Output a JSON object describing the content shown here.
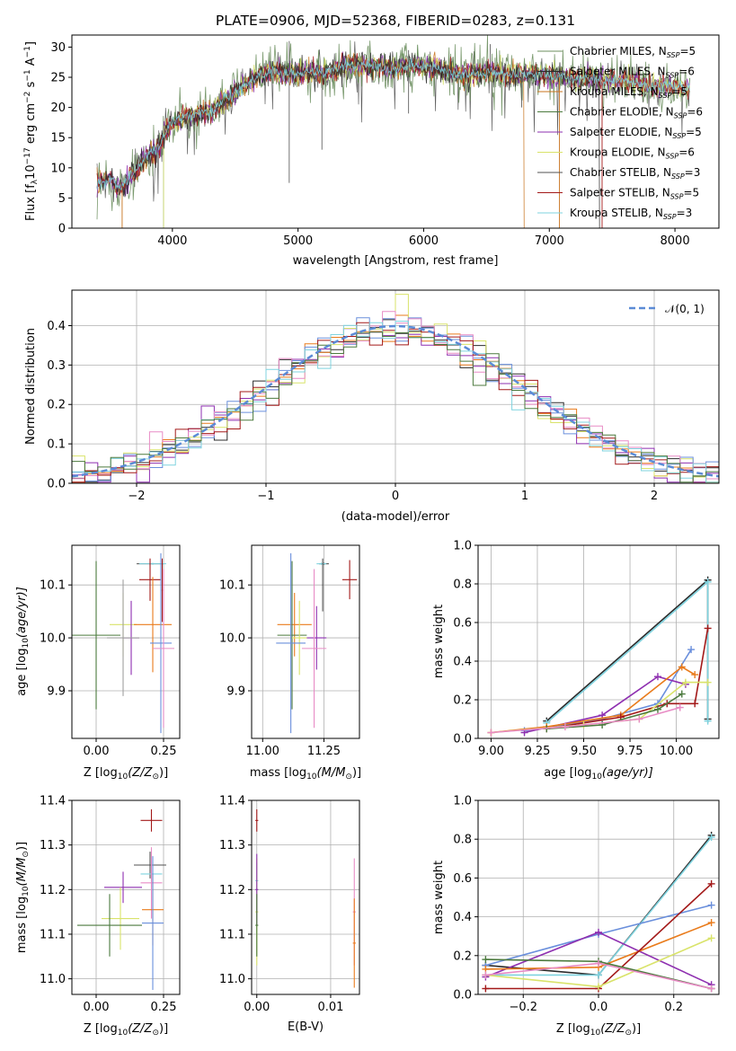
{
  "colors": {
    "series": [
      "#6b8e5e",
      "#2b2b2b",
      "#c8731e",
      "#4c7a3e",
      "#8e2fb0",
      "#d9e36a",
      "#505050",
      "#a31919",
      "#7fd3df"
    ],
    "extra": [
      "#6a8fdc",
      "#e97b1b",
      "#e88bc5",
      "#a0a0a0"
    ],
    "normal": "#5b8bd6"
  },
  "chart_data": [
    {
      "id": "spectrum",
      "type": "line",
      "title": "PLATE=0906, MJD=52368, FIBERID=0283, z=0.131",
      "xlabel": "wavelength [Angstrom, rest frame]",
      "ylabel": "Flux [f",
      "ylabel_sub": "λ",
      "ylabel_rest": "10",
      "ylabel_sup1": "−17",
      "ylabel_units": " erg cm",
      "ylabel_sup2": "−2",
      "ylabel_s": " s",
      "ylabel_sup3": "−1",
      "ylabel_a": " A",
      "ylabel_sup4": "−1",
      "ylabel_end": "]",
      "xlim": [
        3200,
        8350
      ],
      "ylim": [
        0,
        32
      ],
      "xticks": [
        "4000",
        "5000",
        "6000",
        "7000",
        "8000"
      ],
      "xtick_values": [
        4000,
        5000,
        6000,
        7000,
        8000
      ],
      "yticks": [
        "0",
        "5",
        "10",
        "15",
        "20",
        "25",
        "30"
      ],
      "ytick_values": [
        0,
        5,
        10,
        15,
        20,
        25,
        30
      ],
      "grid": false,
      "legend_position": "top-right",
      "legend": [
        {
          "name": "Chabrier MILES, N",
          "sub": "SSP",
          "rest": "=5"
        },
        {
          "name": "Salpeter MILES, N",
          "sub": "SSP",
          "rest": "=6"
        },
        {
          "name": "Kroupa MILES, N",
          "sub": "SSP",
          "rest": "=5"
        },
        {
          "name": "Chabrier ELODIE, N",
          "sub": "SSP",
          "rest": "=6"
        },
        {
          "name": "Salpeter ELODIE, N",
          "sub": "SSP",
          "rest": "=5"
        },
        {
          "name": "Kroupa ELODIE, N",
          "sub": "SSP",
          "rest": "=6"
        },
        {
          "name": "Chabrier STELIB, N",
          "sub": "SSP",
          "rest": "=3"
        },
        {
          "name": "Salpeter STELIB, N",
          "sub": "SSP",
          "rest": "=5"
        },
        {
          "name": "Kroupa STELIB, N",
          "sub": "SSP",
          "rest": "=3"
        }
      ],
      "continuum": [
        [
          3400,
          7.5
        ],
        [
          3500,
          8
        ],
        [
          3600,
          6.5
        ],
        [
          3700,
          9.5
        ],
        [
          3800,
          12
        ],
        [
          3900,
          13.5
        ],
        [
          3950,
          16
        ],
        [
          4000,
          17.5
        ],
        [
          4100,
          18.5
        ],
        [
          4200,
          19
        ],
        [
          4300,
          19
        ],
        [
          4400,
          21
        ],
        [
          4500,
          22.5
        ],
        [
          4600,
          24
        ],
        [
          4700,
          25.5
        ],
        [
          4800,
          26
        ],
        [
          4900,
          25.5
        ],
        [
          5000,
          25.5
        ],
        [
          5100,
          26
        ],
        [
          5200,
          25.5
        ],
        [
          5300,
          26.5
        ],
        [
          5400,
          27
        ],
        [
          5500,
          27
        ],
        [
          5600,
          27
        ],
        [
          5700,
          26.5
        ],
        [
          5800,
          26.5
        ],
        [
          5900,
          27
        ],
        [
          6000,
          27
        ],
        [
          6100,
          26.5
        ],
        [
          6200,
          26
        ],
        [
          6300,
          25.5
        ],
        [
          6400,
          25.5
        ],
        [
          6500,
          26
        ],
        [
          6600,
          25.5
        ],
        [
          6700,
          25.5
        ],
        [
          6800,
          25.5
        ],
        [
          6900,
          25.5
        ],
        [
          7000,
          25
        ],
        [
          7100,
          25.5
        ],
        [
          7200,
          24.5
        ],
        [
          7300,
          25
        ],
        [
          7400,
          24.5
        ],
        [
          7500,
          24.5
        ],
        [
          7600,
          24.5
        ],
        [
          7700,
          24
        ],
        [
          7800,
          23.5
        ],
        [
          7900,
          23.5
        ],
        [
          8000,
          23.5
        ],
        [
          8100,
          23
        ]
      ],
      "spikes": [
        [
          4930,
          7.5
        ],
        [
          4930,
          31
        ],
        [
          5190,
          13
        ],
        [
          5880,
          19
        ],
        [
          5880,
          29.5
        ],
        [
          6530,
          30.5
        ],
        [
          6780,
          20
        ]
      ]
    },
    {
      "id": "residuals",
      "type": "line",
      "xlabel": "(data-model)/error",
      "ylabel": "Normed distribution",
      "xlim": [
        -2.5,
        2.5
      ],
      "ylim": [
        0,
        0.49
      ],
      "xticks": [
        "−2",
        "−1",
        "0",
        "1",
        "2"
      ],
      "xtick_values": [
        -2,
        -1,
        0,
        1,
        2
      ],
      "yticks": [
        "0.0",
        "0.1",
        "0.2",
        "0.3",
        "0.4"
      ],
      "ytick_values": [
        0,
        0.1,
        0.2,
        0.3,
        0.4
      ],
      "grid": true,
      "legend_position": "top-right",
      "legend": [
        {
          "name": "𝒩(0, 1)"
        }
      ],
      "bin_width": 0.1
    },
    {
      "id": "age-vs-Z",
      "type": "scatter",
      "xlabel": "Z [log",
      "xlabel_sub": "10",
      "xlabel_rest": "(Z/Z",
      "xlabel_sub2": "⊙",
      "xlabel_end": ")]",
      "ylabel": "age  [log",
      "ylabel_sub": "10",
      "ylabel_rest": "(age/yr)]",
      "xlim": [
        -0.09,
        0.31
      ],
      "ylim": [
        9.81,
        10.175
      ],
      "xticks": [
        "0.00",
        "0.25"
      ],
      "xtick_values": [
        0,
        0.25
      ],
      "yticks": [
        "9.9",
        "10.0",
        "10.1"
      ],
      "ytick_values": [
        9.9,
        10,
        10.1
      ],
      "grid": true
    },
    {
      "id": "age-vs-mass",
      "type": "scatter",
      "xlabel": "mass [log",
      "xlabel_sub": "10",
      "xlabel_rest": "(M/M",
      "xlabel_sub2": "⊙",
      "xlabel_end": ")]",
      "xlim": [
        10.955,
        11.395
      ],
      "ylim": [
        9.81,
        10.175
      ],
      "xticks": [
        "11.00",
        "11.25"
      ],
      "xtick_values": [
        11,
        11.25
      ],
      "yticks": [
        "9.9",
        "10.0",
        "10.1"
      ],
      "ytick_values": [
        9.9,
        10,
        10.1
      ],
      "grid": true
    },
    {
      "id": "weight-vs-age",
      "type": "line",
      "xlabel": "age  [log",
      "xlabel_sub": "10",
      "xlabel_rest": "(age/yr)]",
      "ylabel": "mass weight",
      "xlim": [
        8.93,
        10.23
      ],
      "ylim": [
        0,
        1
      ],
      "xticks": [
        "9.00",
        "9.25",
        "9.50",
        "9.75",
        "10.00"
      ],
      "xtick_values": [
        9,
        9.25,
        9.5,
        9.75,
        10
      ],
      "yticks": [
        "0.0",
        "0.2",
        "0.4",
        "0.6",
        "0.8",
        "1.0"
      ],
      "ytick_values": [
        0,
        0.2,
        0.4,
        0.6,
        0.8,
        1
      ],
      "grid": true,
      "series": [
        {
          "color": "#2b2b2b",
          "x": [
            9.3,
            10.17,
            10.17
          ],
          "y": [
            0.09,
            0.82,
            0.1
          ]
        },
        {
          "color": "#7fd3df",
          "x": [
            9.3,
            10.17,
            10.17
          ],
          "y": [
            0.08,
            0.81,
            0.09
          ]
        },
        {
          "color": "#6a8fdc",
          "x": [
            9.18,
            9.6,
            9.9,
            10.08
          ],
          "y": [
            0.04,
            0.1,
            0.18,
            0.46
          ]
        },
        {
          "color": "#8e2fb0",
          "x": [
            9.18,
            9.6,
            9.9,
            10.05
          ],
          "y": [
            0.03,
            0.12,
            0.32,
            0.28
          ]
        },
        {
          "color": "#e97b1b",
          "x": [
            9.0,
            9.3,
            9.7,
            10.03,
            10.1
          ],
          "y": [
            0.03,
            0.06,
            0.12,
            0.37,
            0.33
          ]
        },
        {
          "color": "#a31919",
          "x": [
            9.3,
            9.7,
            9.95,
            10.1,
            10.17
          ],
          "y": [
            0.05,
            0.11,
            0.18,
            0.18,
            0.57
          ]
        },
        {
          "color": "#d9e36a",
          "x": [
            9.0,
            9.5,
            9.8,
            10.05,
            10.17
          ],
          "y": [
            0.03,
            0.07,
            0.1,
            0.29,
            0.29
          ]
        },
        {
          "color": "#4c7a3e",
          "x": [
            9.3,
            9.6,
            9.9,
            10.03
          ],
          "y": [
            0.05,
            0.07,
            0.15,
            0.23
          ]
        },
        {
          "color": "#e88bc5",
          "x": [
            9.0,
            9.4,
            9.8,
            10.02
          ],
          "y": [
            0.03,
            0.06,
            0.1,
            0.16
          ]
        }
      ]
    },
    {
      "id": "mass-vs-Z",
      "type": "scatter",
      "xlabel": "Z [log",
      "xlabel_sub": "10",
      "xlabel_rest": "(Z/Z",
      "xlabel_sub2": "⊙",
      "xlabel_end": ")]",
      "ylabel": "mass [log",
      "ylabel_sub": "10",
      "ylabel_rest": "(M/M",
      "ylabel_sub2": "⊙",
      "ylabel_end": ")]",
      "xlim": [
        -0.09,
        0.31
      ],
      "ylim": [
        10.965,
        11.4
      ],
      "xticks": [
        "0.00",
        "0.25"
      ],
      "xtick_values": [
        0,
        0.25
      ],
      "yticks": [
        "11.0",
        "11.1",
        "11.2",
        "11.3",
        "11.4"
      ],
      "ytick_values": [
        11,
        11.1,
        11.2,
        11.3,
        11.4
      ],
      "grid": true
    },
    {
      "id": "mass-vs-ebv",
      "type": "scatter",
      "xlabel": "E(B-V)",
      "xlim": [
        -0.0007,
        0.0139
      ],
      "ylim": [
        10.965,
        11.4
      ],
      "xticks": [
        "0.00",
        "0.01"
      ],
      "xtick_values": [
        0,
        0.01
      ],
      "yticks": [
        "11.0",
        "11.1",
        "11.2",
        "11.3",
        "11.4"
      ],
      "ytick_values": [
        11,
        11.1,
        11.2,
        11.3,
        11.4
      ],
      "grid": true
    },
    {
      "id": "weight-vs-Z",
      "type": "line",
      "xlabel": "Z [log",
      "xlabel_sub": "10",
      "xlabel_rest": "(Z/Z",
      "xlabel_sub2": "⊙",
      "xlabel_end": ")]",
      "ylabel": "mass weight",
      "xlim": [
        -0.32,
        0.32
      ],
      "ylim": [
        0,
        1
      ],
      "xticks": [
        "−0.2",
        "0.0",
        "0.2"
      ],
      "xtick_values": [
        -0.2,
        0,
        0.2
      ],
      "yticks": [
        "0.0",
        "0.2",
        "0.4",
        "0.6",
        "0.8",
        "1.0"
      ],
      "ytick_values": [
        0,
        0.2,
        0.4,
        0.6,
        0.8,
        1
      ],
      "grid": true,
      "series": [
        {
          "color": "#2b2b2b",
          "x": [
            -0.3,
            0.0,
            0.3
          ],
          "y": [
            0.15,
            0.1,
            0.82
          ]
        },
        {
          "color": "#7fd3df",
          "x": [
            -0.3,
            0.0,
            0.3
          ],
          "y": [
            0.1,
            0.1,
            0.81
          ]
        },
        {
          "color": "#6a8fdc",
          "x": [
            -0.3,
            0.0,
            0.3
          ],
          "y": [
            0.15,
            0.31,
            0.46
          ]
        },
        {
          "color": "#8e2fb0",
          "x": [
            -0.3,
            0.0,
            0.3
          ],
          "y": [
            0.09,
            0.32,
            0.05
          ]
        },
        {
          "color": "#e97b1b",
          "x": [
            -0.3,
            0.0,
            0.3
          ],
          "y": [
            0.13,
            0.14,
            0.37
          ]
        },
        {
          "color": "#a31919",
          "x": [
            -0.3,
            0.0,
            0.3
          ],
          "y": [
            0.03,
            0.03,
            0.57
          ]
        },
        {
          "color": "#d9e36a",
          "x": [
            -0.3,
            0.0,
            0.3
          ],
          "y": [
            0.1,
            0.04,
            0.29
          ]
        },
        {
          "color": "#4c7a3e",
          "x": [
            -0.3,
            0.0,
            0.3
          ],
          "y": [
            0.18,
            0.17,
            0.03
          ]
        },
        {
          "color": "#e88bc5",
          "x": [
            -0.3,
            0.0,
            0.3
          ],
          "y": [
            0.1,
            0.16,
            0.03
          ]
        }
      ]
    }
  ]
}
